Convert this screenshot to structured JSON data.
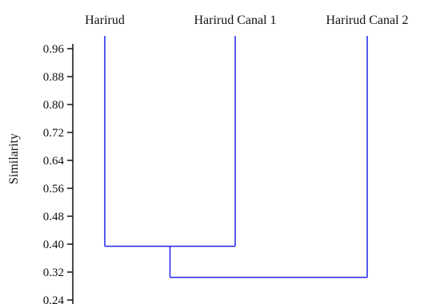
{
  "chart_data": {
    "type": "dendrogram",
    "ylabel": "Similarity",
    "ylim": [
      0.24,
      0.98
    ],
    "yticks": [
      "0.96",
      "0.88",
      "0.80",
      "0.72",
      "0.64",
      "0.56",
      "0.48",
      "0.40",
      "0.32",
      "0.24"
    ],
    "leaves": [
      "Harirud",
      "Harirud Canal 1",
      "Harirud Canal 2"
    ],
    "merges": [
      {
        "children": [
          "Harirud",
          "Harirud Canal 1"
        ],
        "similarity": 0.394
      },
      {
        "children": [
          "Harirud + Harirud Canal 1",
          "Harirud Canal 2"
        ],
        "similarity": 0.305
      }
    ],
    "line_color": "#2222ee"
  }
}
